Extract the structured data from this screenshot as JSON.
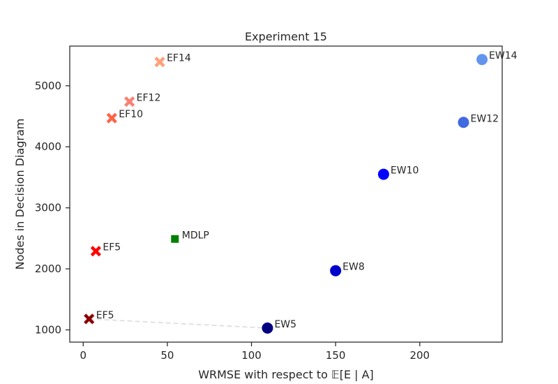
{
  "chart_data": {
    "type": "scatter",
    "title": "Experiment 15",
    "xlabel": "WRMSE with respect to 𝔼[E | A]",
    "ylabel": "Nodes in Decision Diagram",
    "xlim": [
      -8,
      249
    ],
    "ylim": [
      800,
      5650
    ],
    "xticks": [
      0,
      50,
      100,
      150,
      200
    ],
    "yticks": [
      1000,
      2000,
      3000,
      4000,
      5000
    ],
    "xtick_labels": [
      "0",
      "50",
      "100",
      "150",
      "200"
    ],
    "ytick_labels": [
      "1000",
      "2000",
      "3000",
      "4000",
      "5000"
    ],
    "grid": false,
    "points": [
      {
        "label": "EF14",
        "x": 45.5,
        "y": 5390,
        "marker": "x",
        "color": "#ffa07a"
      },
      {
        "label": "EF12",
        "x": 27.5,
        "y": 4740,
        "marker": "x",
        "color": "#fa8072"
      },
      {
        "label": "EF10",
        "x": 17,
        "y": 4470,
        "marker": "x",
        "color": "#ff6347"
      },
      {
        "label": "EF5",
        "x": 7.5,
        "y": 2290,
        "marker": "x",
        "color": "#ff0000"
      },
      {
        "label": "EF5",
        "x": 3.5,
        "y": 1180,
        "marker": "x",
        "color": "#8b0000"
      },
      {
        "label": "MDLP",
        "x": 54.5,
        "y": 2490,
        "marker": "square",
        "color": "#008000"
      },
      {
        "label": "EW14",
        "x": 237,
        "y": 5430,
        "marker": "circle",
        "color": "#6495ed"
      },
      {
        "label": "EW12",
        "x": 226,
        "y": 4400,
        "marker": "circle",
        "color": "#4169e1"
      },
      {
        "label": "EW10",
        "x": 178.5,
        "y": 3550,
        "marker": "circle",
        "color": "#0000ff"
      },
      {
        "label": "EW8",
        "x": 150,
        "y": 1970,
        "marker": "circle",
        "color": "#0000cd"
      },
      {
        "label": "EW5",
        "x": 109.5,
        "y": 1030,
        "marker": "circle",
        "color": "#000080"
      }
    ],
    "connector": {
      "from": [
        3.5,
        1180
      ],
      "to": [
        109.5,
        1030
      ],
      "style": "dashed",
      "color": "#dddddd"
    }
  }
}
